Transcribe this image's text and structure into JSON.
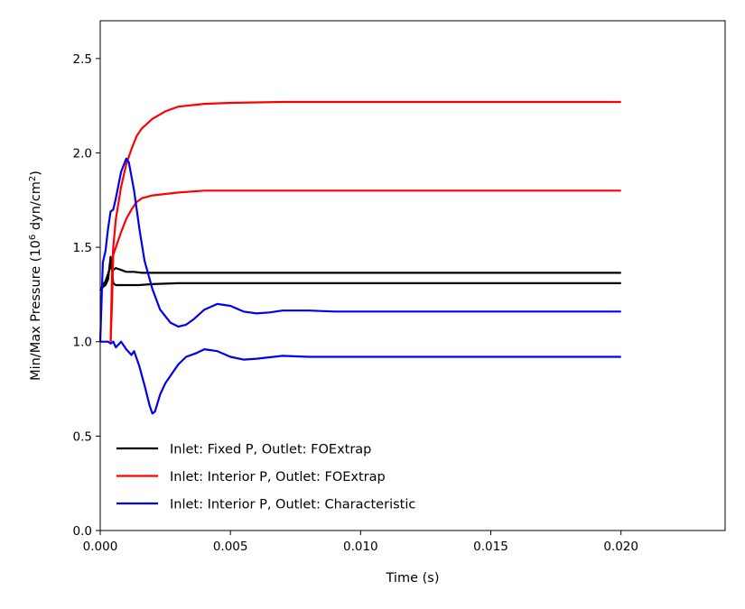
{
  "chart_data": {
    "type": "line",
    "title": "",
    "xlabel": "Time (s)",
    "ylabel": {
      "prefix": "Min/Max Pressure (10",
      "sup1": "6",
      "mid": " dyn/cm",
      "sup2": "2",
      "suffix": ")"
    },
    "xlim": [
      0,
      0.024
    ],
    "ylim": [
      0,
      2.7
    ],
    "xticks": [
      0,
      0.005,
      0.01,
      0.015,
      0.02
    ],
    "xtick_labels": [
      "0.000",
      "0.005",
      "0.010",
      "0.015",
      "0.020"
    ],
    "yticks": [
      0,
      0.5,
      1.0,
      1.5,
      2.0,
      2.5
    ],
    "ytick_labels": [
      "0.0",
      "0.5",
      "1.0",
      "1.5",
      "2.0",
      "2.5"
    ],
    "grid": false,
    "legend_position": "lower-left",
    "series": [
      {
        "name": "Inlet: Fixed P, Outlet: FOExtrap",
        "color": "#000000",
        "lines": [
          [
            [
              0,
              1.27
            ],
            [
              0.0001,
              1.3
            ],
            [
              0.0002,
              1.32
            ],
            [
              0.0003,
              1.36
            ],
            [
              0.0004,
              1.4
            ],
            [
              0.0005,
              1.38
            ],
            [
              0.0006,
              1.39
            ],
            [
              0.0008,
              1.38
            ],
            [
              0.001,
              1.37
            ],
            [
              0.0013,
              1.37
            ],
            [
              0.0016,
              1.365
            ],
            [
              0.002,
              1.365
            ],
            [
              0.003,
              1.365
            ],
            [
              0.02,
              1.365
            ]
          ],
          [
            [
              0,
              1.27
            ],
            [
              0.0001,
              1.29
            ],
            [
              0.0002,
              1.3
            ],
            [
              0.0003,
              1.33
            ],
            [
              0.0004,
              1.45
            ],
            [
              0.0005,
              1.31
            ],
            [
              0.0006,
              1.3
            ],
            [
              0.0008,
              1.3
            ],
            [
              0.001,
              1.3
            ],
            [
              0.0015,
              1.3
            ],
            [
              0.002,
              1.305
            ],
            [
              0.003,
              1.31
            ],
            [
              0.02,
              1.31
            ]
          ]
        ]
      },
      {
        "name": "Inlet: Interior P, Outlet: FOExtrap",
        "color": "#ff0000",
        "lines": [
          [
            [
              0.0004,
              1.0
            ],
            [
              0.00045,
              1.35
            ],
            [
              0.0005,
              1.5
            ],
            [
              0.0006,
              1.65
            ],
            [
              0.0008,
              1.82
            ],
            [
              0.001,
              1.94
            ],
            [
              0.0012,
              2.02
            ],
            [
              0.0014,
              2.09
            ],
            [
              0.0016,
              2.13
            ],
            [
              0.002,
              2.18
            ],
            [
              0.0025,
              2.22
            ],
            [
              0.003,
              2.245
            ],
            [
              0.004,
              2.26
            ],
            [
              0.005,
              2.265
            ],
            [
              0.007,
              2.27
            ],
            [
              0.02,
              2.27
            ]
          ],
          [
            [
              0.0004,
              1.0
            ],
            [
              0.00045,
              1.2
            ],
            [
              0.0005,
              1.46
            ],
            [
              0.0006,
              1.5
            ],
            [
              0.0008,
              1.58
            ],
            [
              0.001,
              1.65
            ],
            [
              0.0012,
              1.7
            ],
            [
              0.0014,
              1.74
            ],
            [
              0.0016,
              1.76
            ],
            [
              0.002,
              1.775
            ],
            [
              0.003,
              1.79
            ],
            [
              0.004,
              1.8
            ],
            [
              0.02,
              1.8
            ]
          ]
        ]
      },
      {
        "name": "Inlet: Interior P, Outlet: Characteristic",
        "color": "#0000ee",
        "lines": [
          [
            [
              0,
              1.0
            ],
            [
              0.0001,
              1.42
            ],
            [
              0.0002,
              1.48
            ],
            [
              0.0003,
              1.6
            ],
            [
              0.0004,
              1.69
            ],
            [
              0.0005,
              1.7
            ],
            [
              0.0006,
              1.76
            ],
            [
              0.0008,
              1.9
            ],
            [
              0.001,
              1.97
            ],
            [
              0.0011,
              1.95
            ],
            [
              0.0013,
              1.8
            ],
            [
              0.0015,
              1.6
            ],
            [
              0.0017,
              1.43
            ],
            [
              0.002,
              1.28
            ],
            [
              0.0023,
              1.17
            ],
            [
              0.0027,
              1.1
            ],
            [
              0.003,
              1.08
            ],
            [
              0.0033,
              1.09
            ],
            [
              0.0036,
              1.12
            ],
            [
              0.004,
              1.17
            ],
            [
              0.0045,
              1.2
            ],
            [
              0.005,
              1.19
            ],
            [
              0.0055,
              1.16
            ],
            [
              0.006,
              1.15
            ],
            [
              0.0065,
              1.155
            ],
            [
              0.007,
              1.165
            ],
            [
              0.008,
              1.165
            ],
            [
              0.009,
              1.16
            ],
            [
              0.02,
              1.16
            ]
          ],
          [
            [
              0,
              1.0
            ],
            [
              0.0003,
              1.0
            ],
            [
              0.0004,
              0.99
            ],
            [
              0.0005,
              1.0
            ],
            [
              0.0006,
              0.97
            ],
            [
              0.0008,
              1.0
            ],
            [
              0.001,
              0.96
            ],
            [
              0.0012,
              0.93
            ],
            [
              0.0013,
              0.95
            ],
            [
              0.0015,
              0.87
            ],
            [
              0.0017,
              0.77
            ],
            [
              0.0019,
              0.66
            ],
            [
              0.002,
              0.62
            ],
            [
              0.0021,
              0.63
            ],
            [
              0.0023,
              0.72
            ],
            [
              0.0025,
              0.78
            ],
            [
              0.0028,
              0.84
            ],
            [
              0.003,
              0.88
            ],
            [
              0.0033,
              0.92
            ],
            [
              0.0037,
              0.94
            ],
            [
              0.004,
              0.96
            ],
            [
              0.0045,
              0.95
            ],
            [
              0.005,
              0.92
            ],
            [
              0.0055,
              0.905
            ],
            [
              0.006,
              0.91
            ],
            [
              0.007,
              0.925
            ],
            [
              0.008,
              0.92
            ],
            [
              0.01,
              0.92
            ],
            [
              0.02,
              0.92
            ]
          ]
        ]
      }
    ]
  }
}
